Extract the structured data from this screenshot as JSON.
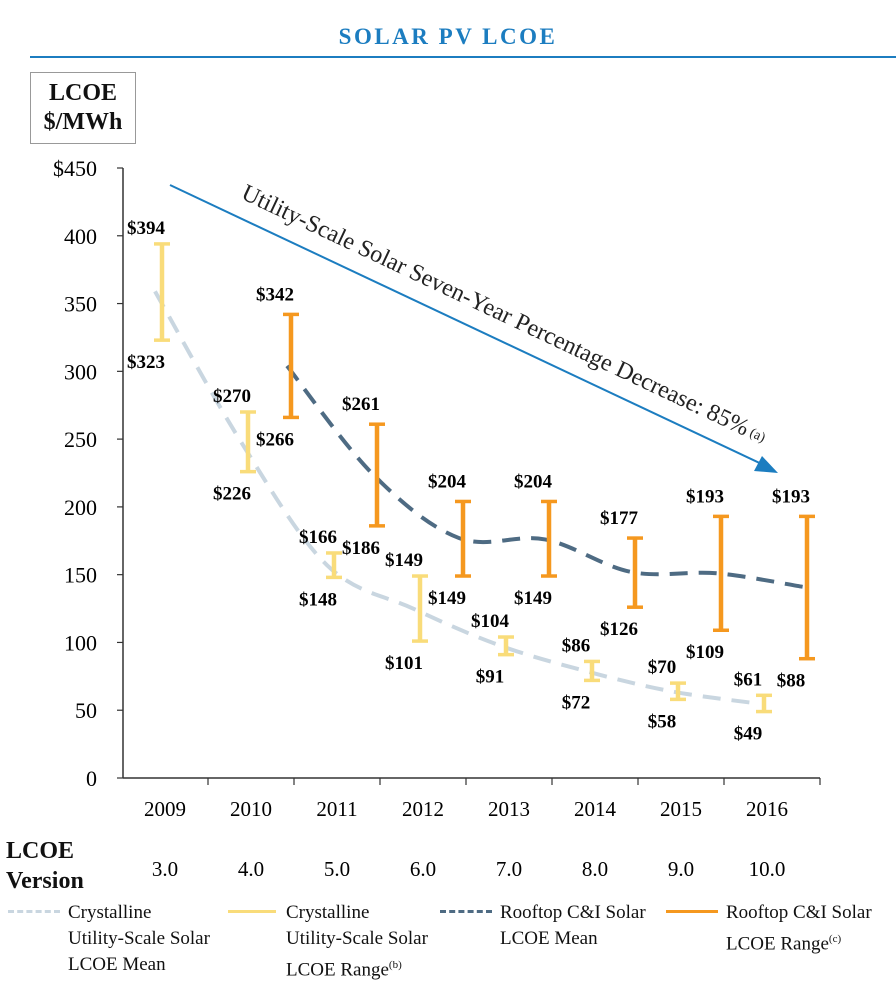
{
  "title": "SOLAR PV LCOE",
  "yaxis_box": {
    "line1": "LCOE",
    "line2": "$/MWh"
  },
  "version_label": {
    "line1": "LCOE",
    "line2": "Version"
  },
  "versions": [
    "3.0",
    "4.0",
    "5.0",
    "6.0",
    "7.0",
    "8.0",
    "9.0",
    "10.0"
  ],
  "colors": {
    "title": "#1c7dc0",
    "utility_mean": "#c9d6e0",
    "utility_range": "#f9dc7a",
    "rooftop_mean": "#4e6b83",
    "rooftop_range": "#f5981f",
    "arrow": "#1c7dc0"
  },
  "annotation": {
    "text": "Utility-Scale Solar Seven-Year Percentage Decrease: 85%",
    "sup": "(a)"
  },
  "legend": [
    {
      "key": "utility_mean",
      "line1": "Crystalline",
      "line2": "Utility-Scale Solar",
      "line3": "LCOE Mean",
      "sup": "",
      "style": "dashed"
    },
    {
      "key": "utility_range",
      "line1": "Crystalline",
      "line2": "Utility-Scale Solar",
      "line3": "LCOE Range",
      "sup": "(b)",
      "style": "solid"
    },
    {
      "key": "rooftop_mean",
      "line1": "Rooftop C&I Solar",
      "line2": "LCOE Mean",
      "line3": "",
      "sup": "",
      "style": "dashed"
    },
    {
      "key": "rooftop_range",
      "line1": "Rooftop C&I Solar",
      "line2": "LCOE Range",
      "line3": "",
      "sup": "(c)",
      "style": "solid"
    }
  ],
  "chart_data": {
    "type": "line",
    "title": "SOLAR PV LCOE",
    "ylabel": "LCOE $/MWh",
    "xlabel": "",
    "categories": [
      "2009",
      "2010",
      "2011",
      "2012",
      "2013",
      "2014",
      "2015",
      "2016"
    ],
    "ylim": [
      0,
      450
    ],
    "yticks": [
      0,
      50,
      100,
      150,
      200,
      250,
      300,
      350,
      400,
      450
    ],
    "ytick_labels": [
      "0",
      "50",
      "100",
      "150",
      "200",
      "250",
      "300",
      "350",
      "400",
      "$450"
    ],
    "grid": false,
    "legend_position": "bottom",
    "series": [
      {
        "name": "Crystalline Utility-Scale Solar LCOE Mean",
        "kind": "dashed-line",
        "values": [
          359,
          248,
          157,
          125,
          98,
          79,
          64,
          55
        ]
      },
      {
        "name": "Crystalline Utility-Scale Solar LCOE Range",
        "kind": "range",
        "low": [
          323,
          226,
          148,
          101,
          91,
          72,
          58,
          49
        ],
        "high": [
          394,
          270,
          166,
          149,
          104,
          86,
          70,
          61
        ],
        "low_labels": [
          "$323",
          "$226",
          "$148",
          "$101",
          "$91",
          "$72",
          "$58",
          "$49"
        ],
        "high_labels": [
          "$394",
          "$270",
          "$166",
          "$149",
          "$104",
          "$86",
          "$70",
          "$61"
        ]
      },
      {
        "name": "Rooftop C&I Solar LCOE Mean",
        "kind": "dashed-line",
        "values": [
          null,
          304,
          224,
          177,
          176,
          152,
          151,
          141
        ]
      },
      {
        "name": "Rooftop C&I Solar LCOE Range",
        "kind": "range",
        "low": [
          null,
          266,
          186,
          149,
          149,
          126,
          109,
          88
        ],
        "high": [
          null,
          342,
          261,
          204,
          204,
          177,
          193,
          193
        ],
        "low_labels": [
          null,
          "$266",
          "$186",
          "$149",
          "$149",
          "$126",
          "$109",
          "$88"
        ],
        "high_labels": [
          null,
          "$342",
          "$261",
          "$204",
          "$204",
          "$177",
          "$193",
          "$193"
        ]
      }
    ]
  }
}
